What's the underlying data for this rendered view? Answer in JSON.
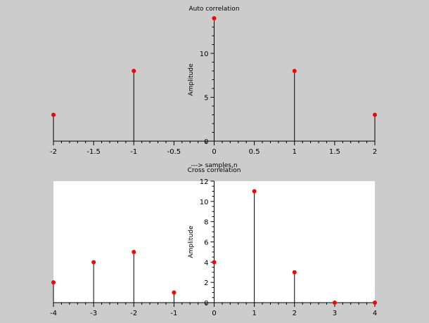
{
  "chart_data": [
    {
      "type": "stem",
      "title": "Auto correlation",
      "xlabel": "---> samples,n",
      "ylabel": "Amplitude",
      "xlim": [
        -2,
        2
      ],
      "ylim": [
        0,
        14
      ],
      "xticks": [
        -2,
        -1.5,
        -1,
        -0.5,
        0,
        0.5,
        1,
        1.5,
        2
      ],
      "xtick_labels": [
        "-2",
        "-1.5",
        "-1",
        "-0.5",
        "0",
        "0.5",
        "1",
        "1.5",
        "2"
      ],
      "yticks": [
        0,
        5,
        10
      ],
      "ytick_labels": [
        "0",
        "5",
        "10"
      ],
      "x": [
        -2,
        -1,
        0,
        1,
        2
      ],
      "y": [
        3,
        8,
        14,
        8,
        3
      ],
      "background": "#cccccc",
      "marker_color": "#ff0000",
      "grid": false
    },
    {
      "type": "stem",
      "title": "Cross correlation",
      "xlabel": "",
      "ylabel": "Amplitude",
      "xlim": [
        -4,
        4
      ],
      "ylim": [
        0,
        12
      ],
      "xticks": [
        -4,
        -3,
        -2,
        -1,
        0,
        1,
        2,
        3,
        4
      ],
      "xtick_labels": [
        "-4",
        "-3",
        "-2",
        "-1",
        "0",
        "1",
        "2",
        "3",
        "4"
      ],
      "yticks": [
        0,
        2,
        4,
        6,
        8,
        10,
        12
      ],
      "ytick_labels": [
        "0",
        "2",
        "4",
        "6",
        "8",
        "10",
        "12"
      ],
      "x": [
        -4,
        -3,
        -2,
        -1,
        0,
        1,
        2,
        3,
        4
      ],
      "y": [
        2,
        4,
        5,
        1,
        4,
        11,
        3,
        0,
        0
      ],
      "background": "#ffffff",
      "marker_color": "#ff0000",
      "grid": false
    }
  ]
}
